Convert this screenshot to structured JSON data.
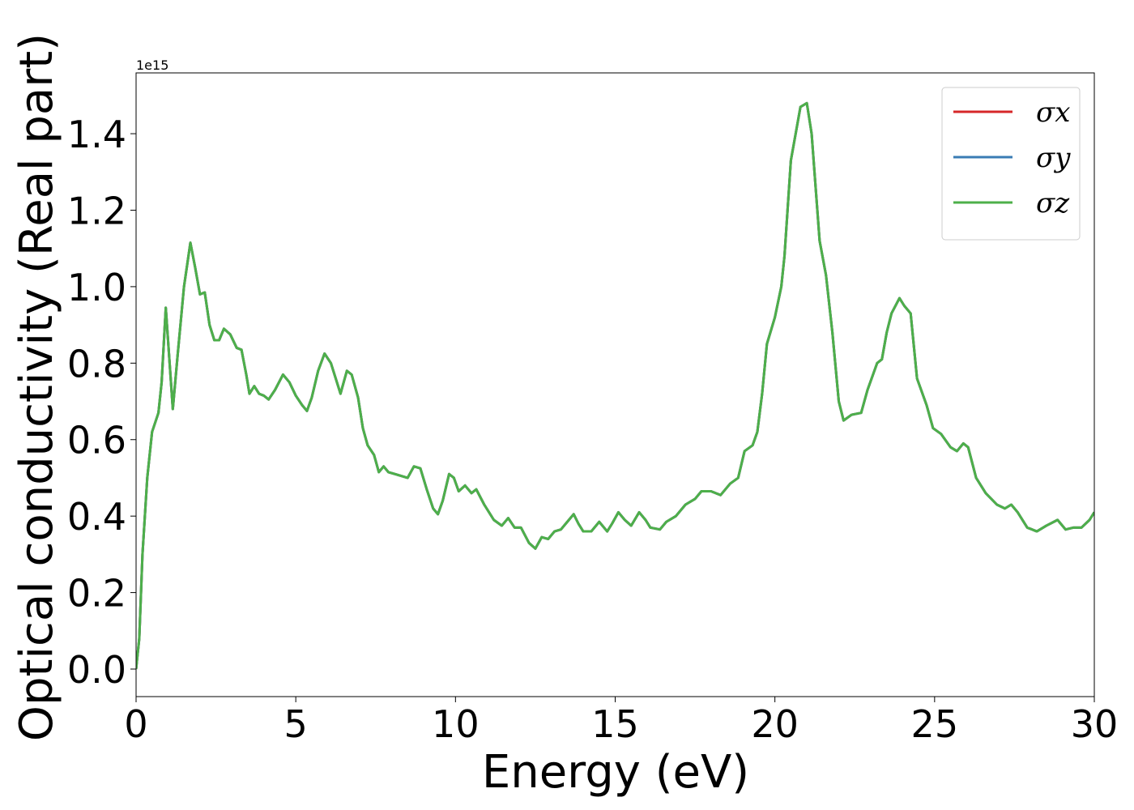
{
  "chart_data": {
    "type": "line",
    "xlabel": "Energy (eV)",
    "ylabel": "Optical conductivity (Real part)",
    "y_offset_text": "1e15",
    "x": [
      0,
      0.1,
      0.2,
      0.35,
      0.5,
      0.7,
      0.8,
      0.93,
      1.05,
      1.15,
      1.3,
      1.5,
      1.7,
      1.85,
      2.0,
      2.15,
      2.3,
      2.45,
      2.6,
      2.75,
      2.95,
      3.15,
      3.3,
      3.45,
      3.55,
      3.7,
      3.85,
      4.0,
      4.15,
      4.35,
      4.6,
      4.8,
      5.0,
      5.2,
      5.35,
      5.5,
      5.7,
      5.9,
      6.1,
      6.25,
      6.4,
      6.6,
      6.75,
      6.95,
      7.1,
      7.25,
      7.45,
      7.6,
      7.75,
      7.9,
      8.1,
      8.3,
      8.5,
      8.7,
      8.9,
      9.1,
      9.3,
      9.45,
      9.6,
      9.8,
      9.95,
      10.1,
      10.3,
      10.5,
      10.65,
      10.9,
      11.2,
      11.45,
      11.65,
      11.85,
      12.05,
      12.3,
      12.5,
      12.7,
      12.9,
      13.1,
      13.3,
      13.5,
      13.7,
      13.85,
      14.0,
      14.25,
      14.5,
      14.75,
      14.9,
      15.1,
      15.3,
      15.5,
      15.75,
      15.95,
      16.1,
      16.4,
      16.6,
      16.9,
      17.2,
      17.5,
      17.7,
      18.0,
      18.3,
      18.6,
      18.85,
      19.05,
      19.3,
      19.45,
      19.6,
      19.75,
      20.0,
      20.2,
      20.3,
      20.5,
      20.8,
      21.0,
      21.15,
      21.4,
      21.6,
      21.8,
      22.0,
      22.15,
      22.4,
      22.7,
      22.9,
      23.2,
      23.35,
      23.5,
      23.65,
      23.9,
      24.05,
      24.25,
      24.45,
      24.75,
      24.95,
      25.2,
      25.5,
      25.7,
      25.9,
      26.05,
      26.3,
      26.6,
      26.95,
      27.2,
      27.4,
      27.6,
      27.9,
      28.2,
      28.5,
      28.85,
      29.1,
      29.35,
      29.6,
      29.85,
      30
    ],
    "series": [
      {
        "name": "σx",
        "color": "#d62728",
        "values": [
          0.0,
          0.08,
          0.3,
          0.5,
          0.62,
          0.67,
          0.75,
          0.945,
          0.8,
          0.68,
          0.82,
          1.0,
          1.115,
          1.05,
          0.98,
          0.985,
          0.9,
          0.86,
          0.86,
          0.89,
          0.875,
          0.84,
          0.835,
          0.77,
          0.72,
          0.74,
          0.72,
          0.715,
          0.705,
          0.73,
          0.77,
          0.75,
          0.715,
          0.69,
          0.675,
          0.71,
          0.78,
          0.825,
          0.8,
          0.76,
          0.72,
          0.78,
          0.77,
          0.71,
          0.63,
          0.585,
          0.56,
          0.515,
          0.53,
          0.515,
          0.51,
          0.505,
          0.5,
          0.53,
          0.525,
          0.47,
          0.42,
          0.405,
          0.44,
          0.51,
          0.5,
          0.465,
          0.48,
          0.46,
          0.47,
          0.43,
          0.39,
          0.375,
          0.395,
          0.37,
          0.37,
          0.33,
          0.315,
          0.345,
          0.34,
          0.36,
          0.365,
          0.385,
          0.405,
          0.38,
          0.36,
          0.36,
          0.385,
          0.36,
          0.38,
          0.41,
          0.39,
          0.375,
          0.41,
          0.39,
          0.37,
          0.365,
          0.385,
          0.4,
          0.43,
          0.445,
          0.465,
          0.465,
          0.455,
          0.485,
          0.5,
          0.57,
          0.585,
          0.62,
          0.72,
          0.85,
          0.92,
          1.0,
          1.08,
          1.33,
          1.47,
          1.48,
          1.4,
          1.12,
          1.03,
          0.88,
          0.7,
          0.65,
          0.665,
          0.67,
          0.73,
          0.8,
          0.81,
          0.88,
          0.93,
          0.97,
          0.95,
          0.93,
          0.76,
          0.69,
          0.63,
          0.615,
          0.58,
          0.57,
          0.59,
          0.58,
          0.5,
          0.46,
          0.43,
          0.42,
          0.43,
          0.41,
          0.37,
          0.36,
          0.375,
          0.39,
          0.365,
          0.37,
          0.37,
          0.39,
          0.41
        ]
      },
      {
        "name": "σy",
        "color": "#3a7cb4",
        "values": [
          0.0,
          0.08,
          0.3,
          0.5,
          0.62,
          0.67,
          0.75,
          0.945,
          0.8,
          0.68,
          0.82,
          1.0,
          1.115,
          1.05,
          0.98,
          0.985,
          0.9,
          0.86,
          0.86,
          0.89,
          0.875,
          0.84,
          0.835,
          0.77,
          0.72,
          0.74,
          0.72,
          0.715,
          0.705,
          0.73,
          0.77,
          0.75,
          0.715,
          0.69,
          0.675,
          0.71,
          0.78,
          0.825,
          0.8,
          0.76,
          0.72,
          0.78,
          0.77,
          0.71,
          0.63,
          0.585,
          0.56,
          0.515,
          0.53,
          0.515,
          0.51,
          0.505,
          0.5,
          0.53,
          0.525,
          0.47,
          0.42,
          0.405,
          0.44,
          0.51,
          0.5,
          0.465,
          0.48,
          0.46,
          0.47,
          0.43,
          0.39,
          0.375,
          0.395,
          0.37,
          0.37,
          0.33,
          0.315,
          0.345,
          0.34,
          0.36,
          0.365,
          0.385,
          0.405,
          0.38,
          0.36,
          0.36,
          0.385,
          0.36,
          0.38,
          0.41,
          0.39,
          0.375,
          0.41,
          0.39,
          0.37,
          0.365,
          0.385,
          0.4,
          0.43,
          0.445,
          0.465,
          0.465,
          0.455,
          0.485,
          0.5,
          0.57,
          0.585,
          0.62,
          0.72,
          0.85,
          0.92,
          1.0,
          1.08,
          1.33,
          1.47,
          1.48,
          1.4,
          1.12,
          1.03,
          0.88,
          0.7,
          0.65,
          0.665,
          0.67,
          0.73,
          0.8,
          0.81,
          0.88,
          0.93,
          0.97,
          0.95,
          0.93,
          0.76,
          0.69,
          0.63,
          0.615,
          0.58,
          0.57,
          0.59,
          0.58,
          0.5,
          0.46,
          0.43,
          0.42,
          0.43,
          0.41,
          0.37,
          0.36,
          0.375,
          0.39,
          0.365,
          0.37,
          0.37,
          0.39,
          0.41
        ]
      },
      {
        "name": "σz",
        "color": "#4daf4a",
        "values": [
          0.0,
          0.08,
          0.3,
          0.5,
          0.62,
          0.67,
          0.75,
          0.945,
          0.8,
          0.68,
          0.82,
          1.0,
          1.115,
          1.05,
          0.98,
          0.985,
          0.9,
          0.86,
          0.86,
          0.89,
          0.875,
          0.84,
          0.835,
          0.77,
          0.72,
          0.74,
          0.72,
          0.715,
          0.705,
          0.73,
          0.77,
          0.75,
          0.715,
          0.69,
          0.675,
          0.71,
          0.78,
          0.825,
          0.8,
          0.76,
          0.72,
          0.78,
          0.77,
          0.71,
          0.63,
          0.585,
          0.56,
          0.515,
          0.53,
          0.515,
          0.51,
          0.505,
          0.5,
          0.53,
          0.525,
          0.47,
          0.42,
          0.405,
          0.44,
          0.51,
          0.5,
          0.465,
          0.48,
          0.46,
          0.47,
          0.43,
          0.39,
          0.375,
          0.395,
          0.37,
          0.37,
          0.33,
          0.315,
          0.345,
          0.34,
          0.36,
          0.365,
          0.385,
          0.405,
          0.38,
          0.36,
          0.36,
          0.385,
          0.36,
          0.38,
          0.41,
          0.39,
          0.375,
          0.41,
          0.39,
          0.37,
          0.365,
          0.385,
          0.4,
          0.43,
          0.445,
          0.465,
          0.465,
          0.455,
          0.485,
          0.5,
          0.57,
          0.585,
          0.62,
          0.72,
          0.85,
          0.92,
          1.0,
          1.08,
          1.33,
          1.47,
          1.48,
          1.4,
          1.12,
          1.03,
          0.88,
          0.7,
          0.65,
          0.665,
          0.67,
          0.73,
          0.8,
          0.81,
          0.88,
          0.93,
          0.97,
          0.95,
          0.93,
          0.76,
          0.69,
          0.63,
          0.615,
          0.58,
          0.57,
          0.59,
          0.58,
          0.5,
          0.46,
          0.43,
          0.42,
          0.43,
          0.41,
          0.37,
          0.36,
          0.375,
          0.39,
          0.365,
          0.37,
          0.37,
          0.39,
          0.41
        ]
      }
    ],
    "xlim": [
      0,
      30
    ],
    "xticks": [
      0,
      5,
      10,
      15,
      20,
      25,
      30
    ],
    "ylim": [
      -0.072,
      1.559
    ],
    "yticks": [
      {
        "value": 0,
        "label": "0.0"
      },
      0.2,
      0.4,
      0.6,
      0.8,
      {
        "value": 1,
        "label": "1.0"
      },
      1.2,
      1.4
    ],
    "legend": "upper right",
    "grid": false
  }
}
